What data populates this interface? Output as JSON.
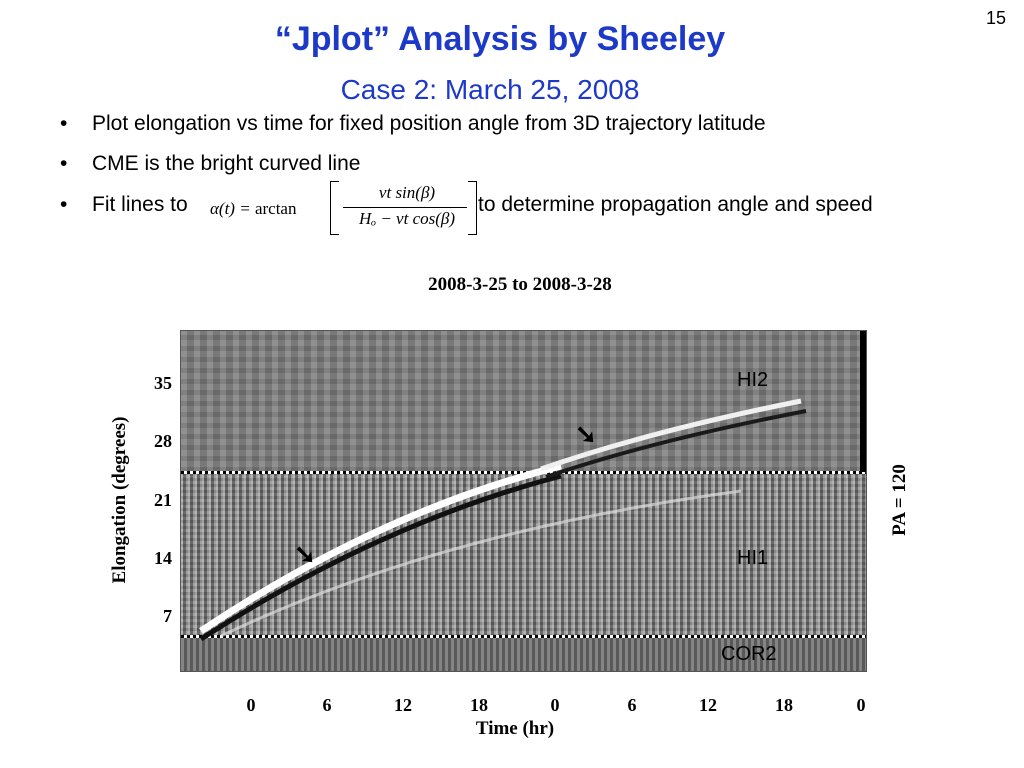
{
  "slide_number": "15",
  "title": "“Jplot” Analysis by Sheeley",
  "subtitle": "Case 2: March 25, 2008",
  "bullets": [
    "Plot elongation vs time for fixed position angle from 3D trajectory latitude",
    "CME is the bright curved line",
    "Fit lines to"
  ],
  "bullet_suffix": "to determine propagation angle and speed",
  "bullet_marker": "•",
  "formula": {
    "lhs_symbol": "α(t) =",
    "lhs_fn": "arctan",
    "numerator": "vt sin(β)",
    "denominator": "Hₒ − vt cos(β)"
  },
  "figure": {
    "title": "2008-3-25 to 2008-3-28",
    "panel_labels": {
      "hi2": "HI2",
      "hi1": "HI1",
      "cor2": "COR2"
    },
    "arrow_glyph": "➘",
    "right_label": "PA = 120"
  },
  "chart_data": {
    "type": "heatmap",
    "title": "2008-3-25 to 2008-3-28",
    "xlabel": "Time (hr)",
    "ylabel": "Elongation (degrees)",
    "x_ticks": [
      "0",
      "6",
      "12",
      "18",
      "0",
      "6",
      "12",
      "18",
      "0"
    ],
    "y_ticks": [
      "35",
      "28",
      "21",
      "14",
      "7"
    ],
    "panels": [
      "HI2",
      "HI1",
      "COR2"
    ],
    "annotation": "PA = 120"
  }
}
